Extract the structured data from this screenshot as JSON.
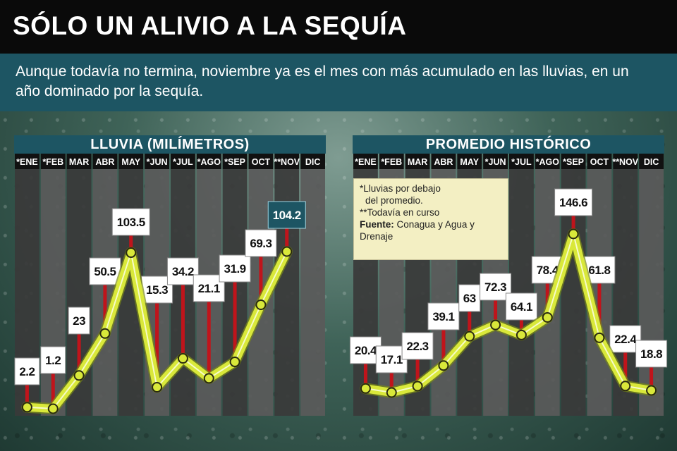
{
  "title": "SÓLO UN ALIVIO A LA SEQUÍA",
  "subtitle": "Aunque todavía no termina, noviembre ya es el mes con más acumulado en las lluvias, en un año dominado por la sequía.",
  "notes": {
    "line1": "*Lluvias por debajo",
    "line2": "del promedio.",
    "line3": "**Todavía en curso",
    "source_label": "Fuente:",
    "source_text": "Conagua y Agua y",
    "source_text2": "Drenaje"
  },
  "colors": {
    "header_bg": "#0a0a0a",
    "title_bar": "#1d5563",
    "line": "#d9e83a",
    "stem": "#c0141b",
    "column_dark": "#3a3a3a",
    "column_light": "#5a5a5a",
    "highlight_label": "#1d5563"
  },
  "chart_data": [
    {
      "type": "line",
      "title": "LLUVIA (MILÍMETROS)",
      "categories": [
        "*ENE",
        "*FEB",
        "MAR",
        "ABR",
        "MAY",
        "*JUN",
        "*JUL",
        "*AGO",
        "*SEP",
        "OCT",
        "**NOV",
        "DIC"
      ],
      "values": [
        2.2,
        1.2,
        23,
        50.5,
        103.5,
        15.3,
        34.2,
        21.1,
        31.9,
        69.3,
        104.2,
        null
      ],
      "value_labels": [
        "2.2",
        "1.2",
        "23",
        "50.5",
        "103.5",
        "15.3",
        "34.2",
        "21.1",
        "31.9",
        "69.3",
        "104.2",
        ""
      ],
      "highlight": "104.2",
      "grid": true
    },
    {
      "type": "line",
      "title": "PROMEDIO HISTÓRICO",
      "categories": [
        "*ENE",
        "*FEB",
        "MAR",
        "ABR",
        "MAY",
        "*JUN",
        "*JUL",
        "*AGO",
        "*SEP",
        "OCT",
        "**NOV",
        "DIC"
      ],
      "values": [
        20.4,
        17.1,
        22.3,
        39.1,
        63,
        72.3,
        64.1,
        78.4,
        146.6,
        61.8,
        22.4,
        18.8
      ],
      "value_labels": [
        "20.4",
        "17.1",
        "22.3",
        "39.1",
        "63",
        "72.3",
        "64.1",
        "78.4",
        "146.6",
        "61.8",
        "22.4",
        "18.8"
      ],
      "grid": true
    }
  ]
}
